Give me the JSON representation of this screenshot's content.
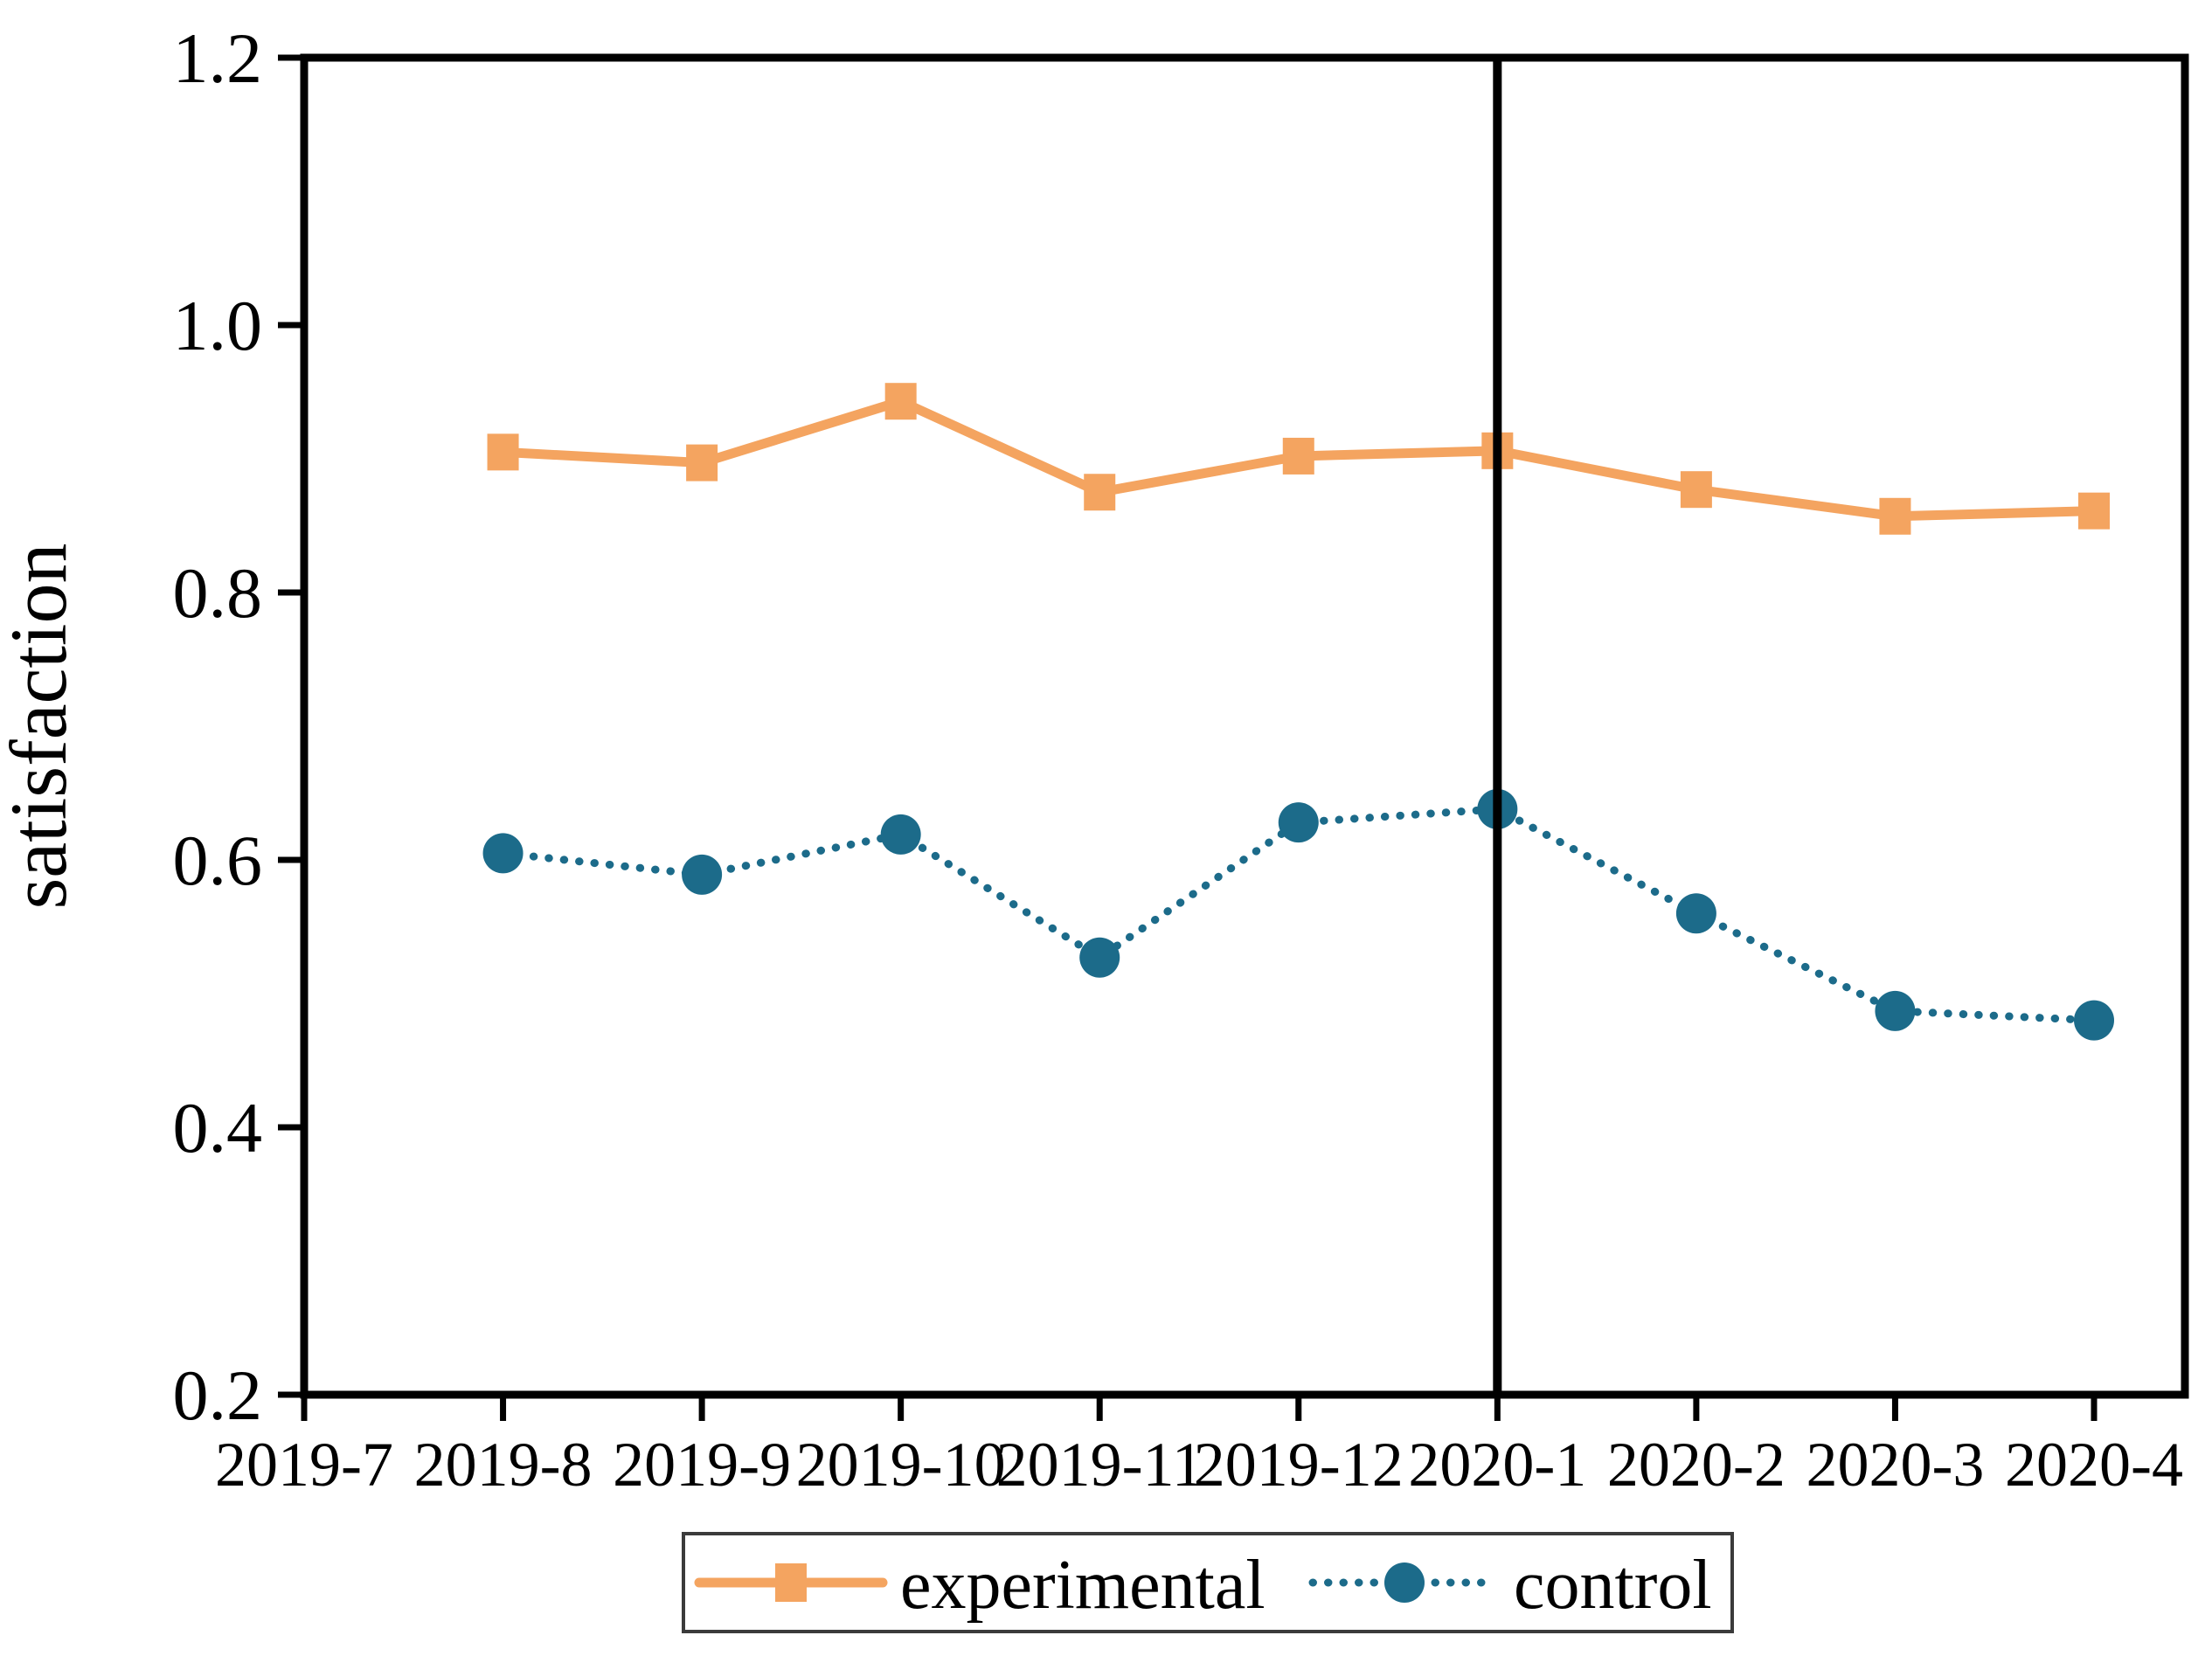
{
  "figure": {
    "background": "#ffffff",
    "axis_color": "#000000"
  },
  "chart_data": {
    "type": "line",
    "title": "",
    "xlabel": "",
    "ylabel": "satisfaction",
    "categories": [
      "2019-7",
      "2019-8",
      "2019-9",
      "2019-10",
      "2019-11",
      "2019-12",
      "2020-1",
      "2020-2",
      "2020-3",
      "2020-4"
    ],
    "ylim": [
      0.2,
      1.2
    ],
    "yticks": [
      0.2,
      0.4,
      0.6,
      0.8,
      1.0,
      1.2
    ],
    "ytick_labels": [
      "0.2",
      "0.4",
      "0.6",
      "0.8",
      "1.0",
      "1.2"
    ],
    "grid": false,
    "legend_position": "bottom-outside",
    "vline": {
      "at": "2020-1",
      "color": "#000000"
    },
    "series": [
      {
        "name": "experimental",
        "color": "#f4a460",
        "marker": "square",
        "line_style": "solid",
        "values": [
          null,
          0.905,
          0.897,
          0.943,
          0.875,
          0.902,
          0.906,
          0.877,
          0.857,
          0.861
        ]
      },
      {
        "name": "control",
        "color": "#1c6b8a",
        "marker": "circle",
        "line_style": "dotted",
        "values": [
          null,
          0.605,
          0.589,
          0.619,
          0.527,
          0.628,
          0.638,
          0.56,
          0.487,
          0.48
        ]
      }
    ]
  }
}
